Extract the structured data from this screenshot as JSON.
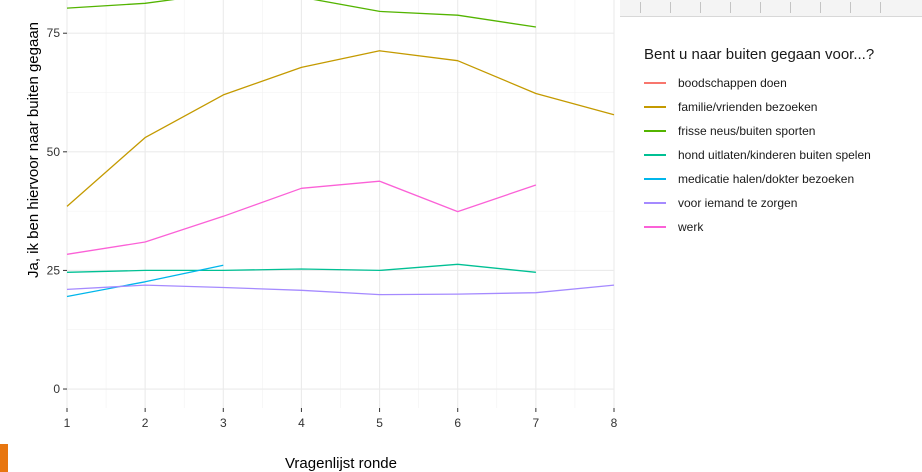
{
  "chart_data": {
    "type": "line",
    "xlabel": "Vragenlijst ronde",
    "ylabel": "Ja, ik ben hiervoor naar buiten gegaan",
    "x_ticks": [
      1,
      2,
      3,
      4,
      5,
      6,
      7,
      8
    ],
    "y_ticks": [
      0,
      25,
      50,
      75
    ],
    "xlim": [
      1,
      8
    ],
    "ylim": [
      -4,
      82
    ],
    "grid": true,
    "legend_title": "Bent u naar buiten gegaan voor...?",
    "legend_position": "right",
    "series": [
      {
        "name": "boodschappen doen",
        "color": "#F8766D",
        "x": [],
        "y": []
      },
      {
        "name": "familie/vrienden bezoeken",
        "color": "#C49A00",
        "x": [
          1,
          2,
          3,
          4,
          5,
          6,
          7,
          8
        ],
        "y": [
          38.5,
          53,
          62,
          67.8,
          71.3,
          69.2,
          62.3,
          57.8
        ]
      },
      {
        "name": "frisse neus/buiten sporten",
        "color": "#53B400",
        "x": [
          1,
          2,
          3,
          4,
          5,
          6,
          7
        ],
        "y": [
          80.3,
          81.3,
          83.5,
          82.6,
          79.6,
          78.8,
          76.3
        ]
      },
      {
        "name": "hond uitlaten/kinderen buiten spelen",
        "color": "#00C094",
        "x": [
          1,
          2,
          3,
          4,
          5,
          6,
          7
        ],
        "y": [
          24.6,
          25,
          25,
          25.3,
          25,
          26.3,
          24.6
        ]
      },
      {
        "name": "medicatie halen/dokter bezoeken",
        "color": "#00B6EB",
        "x": [
          1,
          2,
          3
        ],
        "y": [
          19.5,
          22.6,
          26.1
        ]
      },
      {
        "name": "voor iemand te zorgen",
        "color": "#A58AFF",
        "x": [
          1,
          2,
          3,
          4,
          5,
          6,
          7,
          8
        ],
        "y": [
          21,
          21.9,
          21.4,
          20.8,
          19.9,
          20,
          20.3,
          21.9
        ]
      },
      {
        "name": "werk",
        "color": "#FB61D7",
        "x": [
          1,
          2,
          3,
          4,
          5,
          6,
          7
        ],
        "y": [
          28.4,
          31,
          36.4,
          42.3,
          43.8,
          37.4,
          43
        ]
      }
    ]
  }
}
